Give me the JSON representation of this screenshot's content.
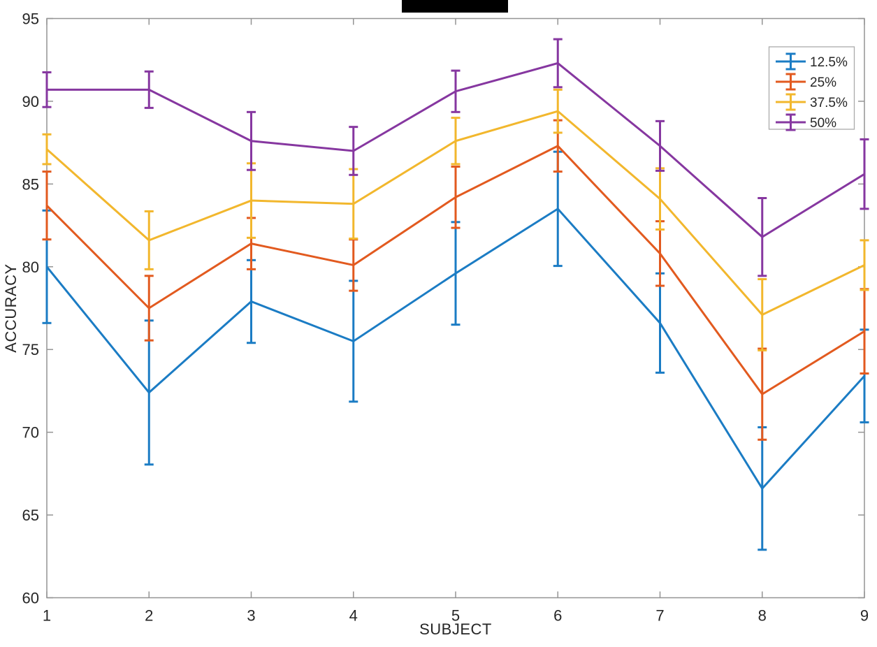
{
  "figure": {
    "title_redacted": true,
    "background": "#ffffff",
    "spine_color": "#949494",
    "text_color": "#262626",
    "legend_border_color": "#ababab"
  },
  "chart_data": {
    "type": "line",
    "subtype": "errorbar",
    "xlabel": "SUBJECT",
    "ylabel": "ACCURACY",
    "x": [
      1,
      2,
      3,
      4,
      5,
      6,
      7,
      8,
      9
    ],
    "xlim": [
      1,
      9
    ],
    "ylim": [
      60,
      95
    ],
    "xticks": [
      1,
      2,
      3,
      4,
      5,
      6,
      7,
      8,
      9
    ],
    "yticks": [
      60,
      65,
      70,
      75,
      80,
      85,
      90,
      95
    ],
    "grid": false,
    "legend_position": "top-right",
    "series": [
      {
        "name": "12.5%",
        "color": "#1b7cc4",
        "values": [
          80.0,
          72.4,
          77.9,
          75.5,
          79.6,
          83.5,
          76.6,
          66.6,
          73.4
        ],
        "errors": [
          3.4,
          4.35,
          2.5,
          3.65,
          3.1,
          3.45,
          3.0,
          3.7,
          2.8
        ]
      },
      {
        "name": "25%",
        "color": "#e25a1f",
        "values": [
          83.7,
          77.5,
          81.4,
          80.1,
          84.2,
          87.3,
          80.8,
          72.3,
          76.1
        ],
        "errors": [
          2.05,
          1.95,
          1.55,
          1.55,
          1.85,
          1.55,
          1.95,
          2.75,
          2.55
        ]
      },
      {
        "name": "37.5%",
        "color": "#f2b72d",
        "values": [
          87.1,
          81.6,
          84.0,
          83.8,
          87.6,
          89.4,
          84.1,
          77.1,
          80.1
        ],
        "errors": [
          0.9,
          1.75,
          2.25,
          2.1,
          1.4,
          1.3,
          1.85,
          2.15,
          1.5
        ]
      },
      {
        "name": "50%",
        "color": "#8637a0",
        "values": [
          90.7,
          90.7,
          87.6,
          87.0,
          90.6,
          92.3,
          87.3,
          81.8,
          85.6
        ],
        "errors": [
          1.05,
          1.1,
          1.75,
          1.45,
          1.25,
          1.45,
          1.5,
          2.35,
          2.1
        ]
      }
    ]
  }
}
